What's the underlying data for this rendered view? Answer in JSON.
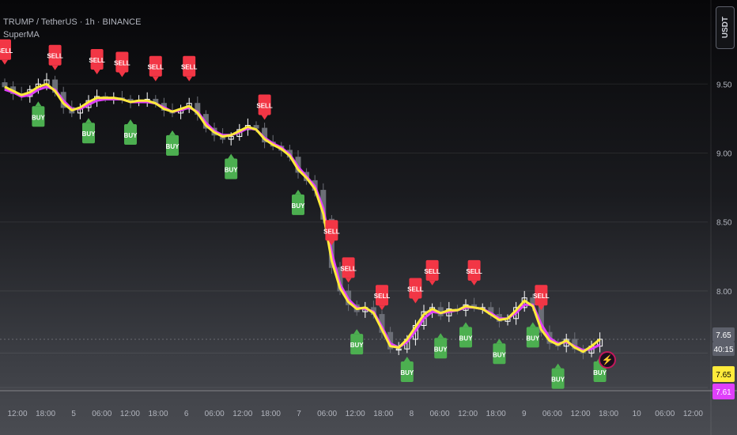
{
  "header": {
    "symbol_line": "TRUMP / TetherUS · 1h · BINANCE",
    "indicator_line": "SuperMA"
  },
  "price_axis": {
    "currency": "USDT",
    "ticks": [
      "9.50",
      "9.00",
      "8.50",
      "8.00"
    ],
    "last_price_label": "7.65",
    "countdown_label": "40:15",
    "ma_fast_label": "7.65",
    "ma_slow_label": "7.61"
  },
  "time_axis": {
    "ticks": [
      "12:00",
      "18:00",
      "5",
      "06:00",
      "12:00",
      "18:00",
      "6",
      "06:00",
      "12:00",
      "18:00",
      "7",
      "06:00",
      "12:00",
      "18:00",
      "8",
      "06:00",
      "12:00",
      "18:00",
      "9",
      "06:00",
      "12:00",
      "18:00",
      "10",
      "06:00",
      "12:00"
    ]
  },
  "colors": {
    "buy": "#4caf50",
    "sell": "#f23645",
    "ma_fast": "#ffeb3b",
    "ma_slow": "#e040fb",
    "candle_up": "#ffffff",
    "candle_down": "#6b6e76"
  },
  "chart_data": {
    "type": "candlestick",
    "title": "TRUMP / TetherUS · 1h · BINANCE",
    "xlabel": "",
    "ylabel": "",
    "ylim": [
      7.3,
      9.88
    ],
    "close_series": [
      9.48,
      9.43,
      9.41,
      9.46,
      9.5,
      9.53,
      9.44,
      9.33,
      9.29,
      9.33,
      9.38,
      9.41,
      9.4,
      9.4,
      9.39,
      9.37,
      9.38,
      9.39,
      9.36,
      9.31,
      9.29,
      9.32,
      9.36,
      9.28,
      9.18,
      9.13,
      9.1,
      9.12,
      9.17,
      9.2,
      9.18,
      9.08,
      9.05,
      9.02,
      8.97,
      8.86,
      8.8,
      8.73,
      8.52,
      8.17,
      8.0,
      7.9,
      7.85,
      7.88,
      7.83,
      7.7,
      7.58,
      7.58,
      7.65,
      7.75,
      7.85,
      7.88,
      7.82,
      7.87,
      7.86,
      7.9,
      7.88,
      7.88,
      7.83,
      7.78,
      7.8,
      7.88,
      7.95,
      7.9,
      7.7,
      7.62,
      7.6,
      7.65,
      7.58,
      7.55,
      7.6,
      7.65
    ],
    "ma_fast": [
      9.48,
      9.45,
      9.42,
      9.44,
      9.48,
      9.5,
      9.45,
      9.36,
      9.31,
      9.33,
      9.37,
      9.4,
      9.4,
      9.4,
      9.39,
      9.37,
      9.38,
      9.38,
      9.36,
      9.32,
      9.3,
      9.32,
      9.34,
      9.29,
      9.2,
      9.15,
      9.12,
      9.13,
      9.16,
      9.19,
      9.17,
      9.1,
      9.06,
      9.03,
      8.98,
      8.88,
      8.82,
      8.74,
      8.56,
      8.22,
      8.02,
      7.92,
      7.87,
      7.88,
      7.84,
      7.72,
      7.6,
      7.59,
      7.65,
      7.74,
      7.83,
      7.87,
      7.84,
      7.86,
      7.86,
      7.89,
      7.88,
      7.87,
      7.83,
      7.79,
      7.8,
      7.86,
      7.93,
      7.89,
      7.72,
      7.64,
      7.61,
      7.64,
      7.59,
      7.56,
      7.6,
      7.65
    ],
    "ma_slow": [
      9.46,
      9.44,
      9.41,
      9.42,
      9.46,
      9.48,
      9.46,
      9.38,
      9.32,
      9.32,
      9.35,
      9.38,
      9.39,
      9.39,
      9.39,
      9.37,
      9.37,
      9.37,
      9.36,
      9.33,
      9.3,
      9.31,
      9.33,
      9.3,
      9.22,
      9.16,
      9.13,
      9.13,
      9.15,
      9.18,
      9.17,
      9.11,
      9.07,
      9.04,
      8.99,
      8.9,
      8.83,
      8.76,
      8.6,
      8.28,
      8.05,
      7.94,
      7.88,
      7.87,
      7.85,
      7.74,
      7.62,
      7.59,
      7.63,
      7.71,
      7.8,
      7.85,
      7.84,
      7.85,
      7.86,
      7.88,
      7.88,
      7.87,
      7.84,
      7.8,
      7.8,
      7.84,
      7.9,
      7.9,
      7.76,
      7.66,
      7.62,
      7.63,
      7.6,
      7.57,
      7.58,
      7.61
    ],
    "sell_signals": [
      0,
      7,
      13,
      17,
      22,
      27,
      38,
      47,
      50,
      55,
      59,
      62,
      68,
      78
    ],
    "buy_signals": [
      5,
      12,
      18,
      24,
      33,
      42,
      51,
      58,
      63,
      67,
      72,
      76,
      80,
      86
    ],
    "signal_labels": {
      "buy": "BUY",
      "sell": "SELL"
    },
    "legend": "none",
    "grid": true
  }
}
